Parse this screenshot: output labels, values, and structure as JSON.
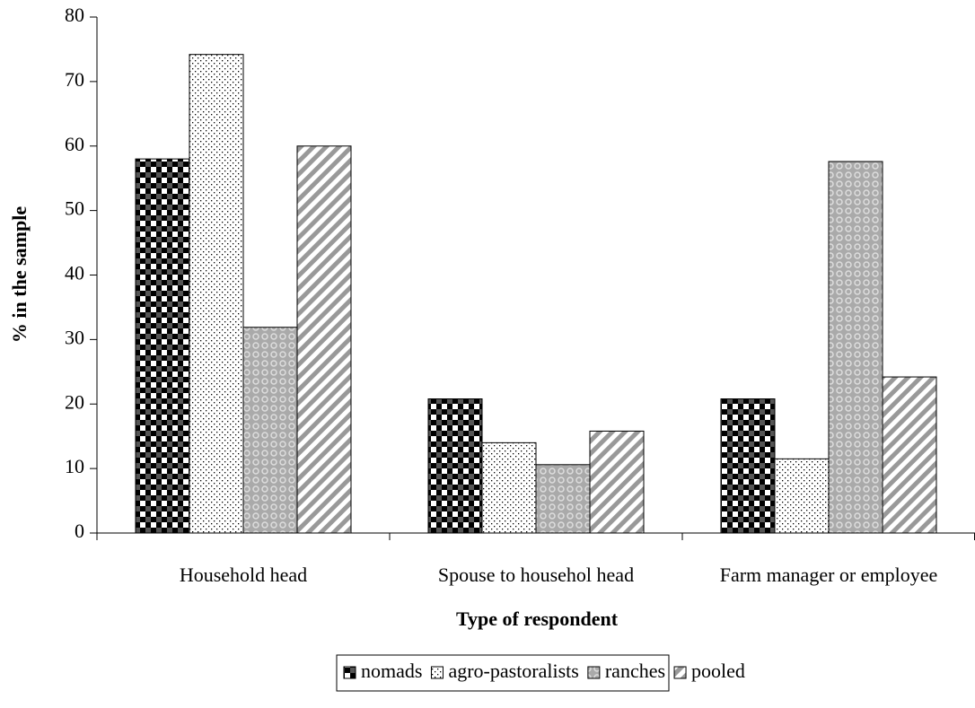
{
  "chart_data": {
    "type": "bar",
    "x_label": "Type of respondent",
    "y_label": "% in the sample",
    "categories": [
      "Household head",
      "Spouse to househol head",
      "Farm manager or employee"
    ],
    "series": [
      {
        "name": "nomads",
        "values": [
          58,
          20.8,
          20.8
        ]
      },
      {
        "name": "agro-pastoralists",
        "values": [
          74.2,
          14,
          11.5
        ]
      },
      {
        "name": "ranches",
        "values": [
          31.9,
          10.6,
          57.6
        ]
      },
      {
        "name": "pooled",
        "values": [
          60,
          15.8,
          24.2
        ]
      }
    ],
    "ylim": [
      0,
      80
    ],
    "yticks": [
      0,
      10,
      20,
      30,
      40,
      50,
      60,
      70,
      80
    ]
  }
}
